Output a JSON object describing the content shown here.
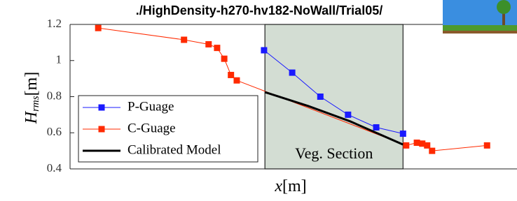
{
  "chart_data": {
    "type": "line",
    "title": "./HighDensity-h270-hv182-NoWall/Trial05/",
    "xlabel": {
      "main": "x",
      "unit": "[m]"
    },
    "ylabel": {
      "main": "H",
      "sub": "rms",
      "unit": "[m]"
    },
    "xlim": [
      0,
      100
    ],
    "ylim": [
      0.4,
      1.2
    ],
    "yticks": [
      1.2,
      1,
      0.8,
      0.6,
      0.4
    ],
    "region": {
      "label": "Veg. Section",
      "x": [
        43.6,
        74.5
      ],
      "color": "#d3ddd3"
    },
    "legend": "lower left",
    "series": [
      {
        "name": "P-Guage",
        "color": "#1a1aff",
        "marker": "square",
        "width": 1,
        "x": [
          43.4,
          49.7,
          56,
          62.2,
          68.5,
          74.5
        ],
        "values": [
          1.057,
          0.933,
          0.8,
          0.7,
          0.63,
          0.595
        ]
      },
      {
        "name": "C-Guage",
        "color": "#ff2a00",
        "marker": "square",
        "width": 1,
        "x": [
          6.3,
          25.5,
          31,
          32.9,
          34.5,
          36,
          37.3,
          75.2,
          77.6,
          78.8,
          79.9,
          81,
          93.3
        ],
        "values": [
          1.18,
          1.115,
          1.09,
          1.07,
          1.01,
          0.92,
          0.89,
          0.53,
          0.545,
          0.54,
          0.53,
          0.5,
          0.53
        ]
      },
      {
        "name": "Calibrated Model",
        "color": "#000000",
        "marker": "none",
        "width": 3,
        "x": [
          43.6,
          53.3,
          62.7,
          74.5
        ],
        "values": [
          0.825,
          0.748,
          0.663,
          0.535
        ]
      }
    ]
  }
}
